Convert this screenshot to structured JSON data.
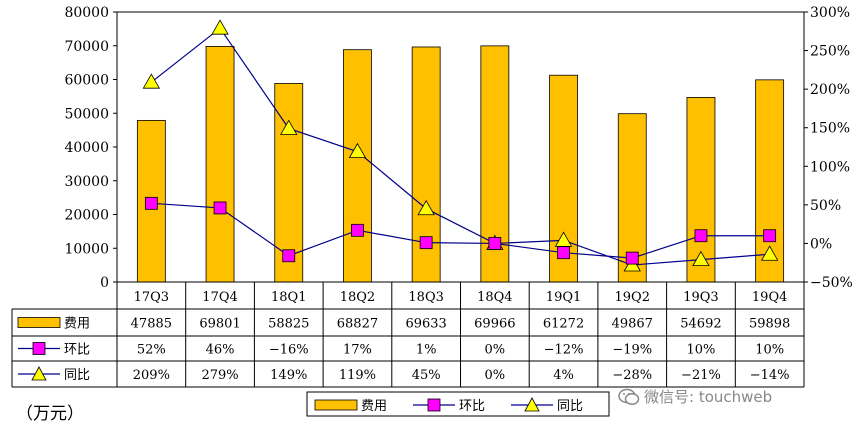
{
  "chart_data": {
    "type": "bar",
    "categories": [
      "17Q3",
      "17Q4",
      "18Q1",
      "18Q2",
      "18Q3",
      "18Q4",
      "19Q1",
      "19Q2",
      "19Q3",
      "19Q4"
    ],
    "series": [
      {
        "name": "费用",
        "type": "bar",
        "axis": "left",
        "values": [
          47885,
          69801,
          58825,
          68827,
          69633,
          69966,
          61272,
          49867,
          54692,
          59898
        ],
        "labels": [
          "47885",
          "69801",
          "58825",
          "68827",
          "69633",
          "69966",
          "61272",
          "49867",
          "54692",
          "59898"
        ],
        "color": "#FFC000"
      },
      {
        "name": "环比",
        "type": "line",
        "axis": "right",
        "values": [
          52,
          46,
          -16,
          17,
          1,
          0,
          -12,
          -19,
          10,
          10
        ],
        "labels": [
          "52%",
          "46%",
          "−16%",
          "17%",
          "1%",
          "0%",
          "−12%",
          "−19%",
          "10%",
          "10%"
        ],
        "color": "#FF00FF",
        "marker": "square"
      },
      {
        "name": "同比",
        "type": "line",
        "axis": "right",
        "values": [
          209,
          279,
          149,
          119,
          45,
          0,
          4,
          -28,
          -21,
          -14
        ],
        "labels": [
          "209%",
          "279%",
          "149%",
          "119%",
          "45%",
          "0%",
          "4%",
          "−28%",
          "−21%",
          "−14%"
        ],
        "color": "#FFFF00",
        "marker": "triangle"
      }
    ],
    "y_left": {
      "min": 0,
      "max": 80000,
      "step": 10000,
      "ticks": [
        "0",
        "10000",
        "20000",
        "30000",
        "40000",
        "50000",
        "60000",
        "70000",
        "80000"
      ]
    },
    "y_right": {
      "min": -50,
      "max": 300,
      "step": 50,
      "ticks": [
        "−50%",
        "0%",
        "50%",
        "100%",
        "150%",
        "200%",
        "250%",
        "300%"
      ]
    },
    "unit": "（万元）",
    "grid": false,
    "legend": "bottom",
    "data_table": true,
    "line_color": "#00008B"
  },
  "watermark": {
    "icon": "wechat-icon",
    "text": "微信号: touchweb"
  }
}
